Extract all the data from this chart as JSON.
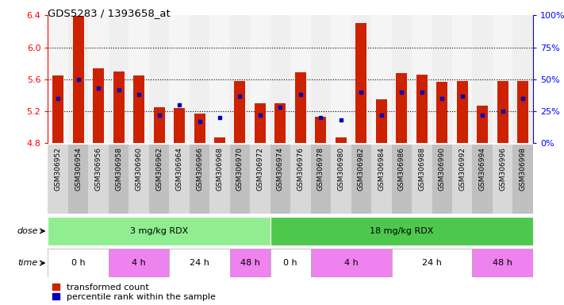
{
  "title": "GDS5283 / 1393658_at",
  "samples": [
    "GSM306952",
    "GSM306954",
    "GSM306956",
    "GSM306958",
    "GSM306960",
    "GSM306962",
    "GSM306964",
    "GSM306966",
    "GSM306968",
    "GSM306970",
    "GSM306972",
    "GSM306974",
    "GSM306976",
    "GSM306978",
    "GSM306980",
    "GSM306982",
    "GSM306984",
    "GSM306986",
    "GSM306988",
    "GSM306990",
    "GSM306992",
    "GSM306994",
    "GSM306996",
    "GSM306998"
  ],
  "red_values": [
    5.65,
    6.39,
    5.74,
    5.7,
    5.65,
    5.25,
    5.24,
    5.17,
    4.87,
    5.58,
    5.3,
    5.3,
    5.69,
    5.13,
    4.87,
    6.3,
    5.35,
    5.68,
    5.66,
    5.57,
    5.58,
    5.27,
    5.58,
    5.58
  ],
  "blue_percentile": [
    35,
    50,
    43,
    42,
    38,
    22,
    30,
    17,
    20,
    37,
    22,
    28,
    38,
    20,
    18,
    40,
    22,
    40,
    40,
    35,
    37,
    22,
    25,
    35
  ],
  "ymin": 4.8,
  "ymax": 6.4,
  "yticks_left": [
    4.8,
    5.2,
    5.6,
    6.0,
    6.4
  ],
  "yticks_right_pct": [
    0,
    25,
    50,
    75,
    100
  ],
  "right_ylabels": [
    "0%",
    "25%",
    "50%",
    "75%",
    "100%"
  ],
  "dose_groups": [
    {
      "text": "3 mg/kg RDX",
      "start": 0,
      "end": 11,
      "color": "#90EE90"
    },
    {
      "text": "18 mg/kg RDX",
      "start": 11,
      "end": 24,
      "color": "#4DC84D"
    }
  ],
  "time_groups": [
    {
      "text": "0 h",
      "start": 0,
      "end": 3,
      "color": "#FFFFFF"
    },
    {
      "text": "4 h",
      "start": 3,
      "end": 6,
      "color": "#EE82EE"
    },
    {
      "text": "24 h",
      "start": 6,
      "end": 9,
      "color": "#FFFFFF"
    },
    {
      "text": "48 h",
      "start": 9,
      "end": 11,
      "color": "#EE82EE"
    },
    {
      "text": "0 h",
      "start": 11,
      "end": 13,
      "color": "#FFFFFF"
    },
    {
      "text": "4 h",
      "start": 13,
      "end": 17,
      "color": "#EE82EE"
    },
    {
      "text": "24 h",
      "start": 17,
      "end": 21,
      "color": "#FFFFFF"
    },
    {
      "text": "48 h",
      "start": 21,
      "end": 24,
      "color": "#EE82EE"
    }
  ],
  "bar_color": "#CC2200",
  "blue_color": "#0000BB",
  "base": 4.8,
  "legend_red": "transformed count",
  "legend_blue": "percentile rank within the sample",
  "bar_width": 0.55,
  "label_area_color_even": "#D8D8D8",
  "label_area_color_odd": "#C0C0C0"
}
